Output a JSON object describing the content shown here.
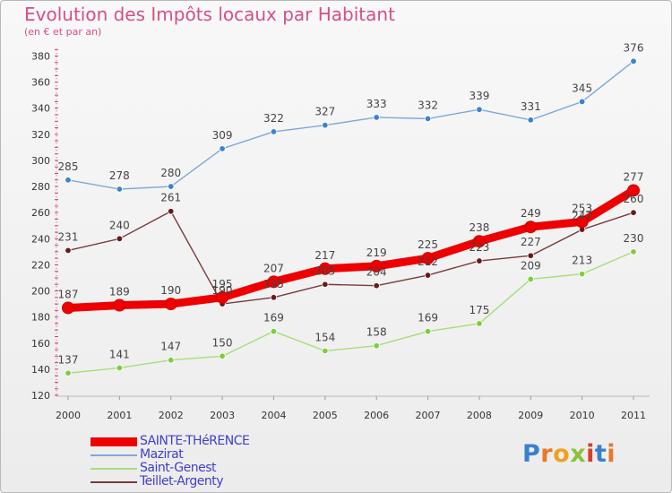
{
  "title": "Evolution des Impôts locaux par Habitant",
  "subtitle": "(en € et par an)",
  "logo": {
    "text": "Proxiti",
    "colors": [
      "#3a7fcf",
      "#e8782a",
      "#f0a020",
      "#8ac23a",
      "#d4402a",
      "#3a7fcf",
      "#e8782a"
    ]
  },
  "chart_data": {
    "type": "line",
    "title": "Evolution des Impôts locaux par Habitant",
    "subtitle": "(en € et par an)",
    "x": [
      "2000",
      "2001",
      "2002",
      "2003",
      "2004",
      "2005",
      "2006",
      "2007",
      "2008",
      "2009",
      "2010",
      "2011"
    ],
    "ylim": [
      120,
      385
    ],
    "yticks": [
      120,
      140,
      160,
      180,
      200,
      220,
      240,
      260,
      280,
      300,
      320,
      340,
      360,
      380
    ],
    "ytick_labels": [
      "120",
      "140",
      "160",
      "180",
      "200",
      "220",
      "240",
      "260",
      "280",
      "300",
      "320",
      "340",
      "360",
      "380"
    ],
    "grid": false,
    "legend_position": "bottom-left",
    "series": [
      {
        "name": "SAINTE-THéRENCE",
        "values": [
          187,
          189,
          190,
          195,
          207,
          217,
          219,
          225,
          238,
          249,
          253,
          277
        ],
        "color": "#ee0000",
        "marker": "#ee0000",
        "bold": true,
        "labels": [
          "187",
          "189",
          "190",
          "195",
          "207",
          "217",
          "219",
          "225",
          "238",
          "249",
          "253",
          "277"
        ]
      },
      {
        "name": "Mazirat",
        "values": [
          285,
          278,
          280,
          309,
          322,
          327,
          333,
          332,
          339,
          331,
          345,
          376
        ],
        "color": "#7fa8d8",
        "marker": "#3b84cc",
        "bold": false,
        "labels": [
          "285",
          "278",
          "280",
          "309",
          "322",
          "327",
          "333",
          "332",
          "339",
          "331",
          "345",
          "376"
        ]
      },
      {
        "name": "Saint-Genest",
        "values": [
          137,
          141,
          147,
          150,
          169,
          154,
          158,
          169,
          175,
          209,
          213,
          230
        ],
        "color": "#a8dd7a",
        "marker": "#80cc40",
        "bold": false,
        "labels": [
          "137",
          "141",
          "147",
          "150",
          "169",
          "154",
          "158",
          "169",
          "175",
          "209",
          "213",
          "230"
        ]
      },
      {
        "name": "Teillet-Argenty",
        "values": [
          231,
          240,
          261,
          190,
          195,
          205,
          204,
          212,
          223,
          227,
          247,
          260
        ],
        "color": "#7a3a3a",
        "marker": "#6a1a1a",
        "bold": false,
        "labels": [
          "231",
          "240",
          "261",
          "190",
          "195",
          "205",
          "204",
          "212",
          "223",
          "227",
          "247",
          "260"
        ]
      }
    ]
  }
}
